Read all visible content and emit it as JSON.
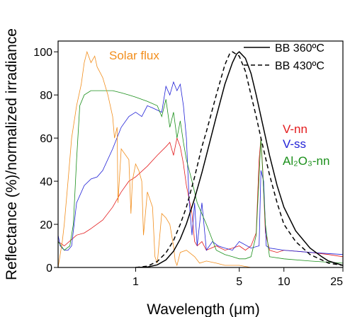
{
  "chart_data": {
    "type": "line",
    "xlabel": "Wavelength (μm)",
    "ylabel": "Reflectance (%)/normalized irradiance",
    "x_scale": "log",
    "xlim": [
      0.3,
      25
    ],
    "ylim": [
      0,
      105
    ],
    "x_ticks": [
      1,
      5,
      10,
      25
    ],
    "y_ticks": [
      0,
      20,
      40,
      60,
      80,
      100
    ],
    "grid": false,
    "legend_position": "top-right",
    "legend": [
      {
        "label": "BB 360ºC",
        "dash": "solid",
        "color": "#000000"
      },
      {
        "label": "BB 430ºC",
        "dash": "dashed",
        "color": "#000000"
      }
    ],
    "annotations": [
      {
        "text": "Solar flux",
        "color": "#f28e1c"
      },
      {
        "text": "V-nn",
        "color": "#e31a1c"
      },
      {
        "text": "V-ss",
        "color": "#1f1fd6"
      },
      {
        "text": "Al₂O₃-nn",
        "color": "#1a8f1a"
      }
    ],
    "series": [
      {
        "name": "V-nn",
        "color": "#e31a1c",
        "dash": "solid",
        "x": [
          0.3,
          0.33,
          0.37,
          0.4,
          0.45,
          0.5,
          0.6,
          0.7,
          0.8,
          0.9,
          1.0,
          1.2,
          1.4,
          1.6,
          1.7,
          1.8,
          1.9,
          2.0,
          2.1,
          2.2,
          2.4,
          2.5,
          2.6,
          2.8,
          3.0,
          3.5,
          4.0,
          4.5,
          5.0,
          5.5,
          6.0,
          6.5,
          6.8,
          7.0,
          7.2,
          7.5,
          8.0,
          9.0,
          10,
          15,
          20,
          25
        ],
        "y": [
          12,
          10,
          13,
          15,
          16,
          18,
          22,
          28,
          35,
          40,
          42,
          47,
          52,
          56,
          58,
          52,
          60,
          56,
          48,
          38,
          25,
          12,
          10,
          12,
          8,
          10,
          8,
          9,
          10,
          8,
          10,
          16,
          50,
          60,
          45,
          16,
          8,
          7,
          8,
          7,
          6,
          5
        ]
      },
      {
        "name": "V-ss",
        "color": "#1f1fd6",
        "dash": "solid",
        "x": [
          0.3,
          0.31,
          0.33,
          0.35,
          0.37,
          0.4,
          0.45,
          0.5,
          0.55,
          0.6,
          0.7,
          0.8,
          0.9,
          1.0,
          1.1,
          1.2,
          1.3,
          1.5,
          1.6,
          1.7,
          1.8,
          1.9,
          2.0,
          2.1,
          2.2,
          2.3,
          2.4,
          2.5,
          2.6,
          2.8,
          3.0,
          3.3,
          3.6,
          4.0,
          4.5,
          5.0,
          6.0,
          6.8,
          7.0,
          7.3,
          7.6,
          8.0,
          10,
          15,
          25
        ],
        "y": [
          15,
          10,
          8,
          8,
          10,
          30,
          38,
          41,
          42,
          45,
          55,
          65,
          70,
          72,
          70,
          75,
          74,
          72,
          84,
          80,
          86,
          82,
          85,
          75,
          60,
          30,
          15,
          30,
          10,
          30,
          8,
          12,
          10,
          9,
          8,
          12,
          9,
          10,
          45,
          40,
          10,
          9,
          8,
          7,
          6
        ]
      },
      {
        "name": "Al₂O₃-nn",
        "color": "#1a8f1a",
        "dash": "solid",
        "x": [
          0.3,
          0.33,
          0.36,
          0.38,
          0.4,
          0.42,
          0.45,
          0.5,
          0.6,
          0.7,
          0.8,
          0.9,
          1.0,
          1.2,
          1.4,
          1.5,
          1.6,
          1.7,
          1.8,
          1.9,
          2.0,
          2.1,
          2.2,
          2.4,
          2.6,
          3.0,
          3.5,
          4.0,
          4.5,
          5.0,
          5.5,
          6.0,
          6.5,
          7.0,
          7.5,
          8.0,
          10,
          15,
          25
        ],
        "y": [
          12,
          8,
          10,
          20,
          50,
          75,
          80,
          82,
          82,
          82,
          81,
          80,
          79,
          77,
          75,
          70,
          78,
          65,
          72,
          60,
          68,
          58,
          50,
          40,
          30,
          20,
          8,
          6,
          5,
          4,
          4,
          5,
          15,
          60,
          20,
          5,
          4,
          3,
          2
        ]
      },
      {
        "name": "Solar flux",
        "color": "#f28e1c",
        "dash": "solid",
        "x": [
          0.3,
          0.32,
          0.33,
          0.35,
          0.37,
          0.4,
          0.43,
          0.45,
          0.47,
          0.5,
          0.53,
          0.55,
          0.58,
          0.6,
          0.65,
          0.7,
          0.72,
          0.75,
          0.76,
          0.8,
          0.9,
          0.93,
          0.95,
          1.0,
          1.05,
          1.1,
          1.13,
          1.2,
          1.3,
          1.35,
          1.4,
          1.5,
          1.6,
          1.7,
          1.8,
          1.85,
          1.9,
          2.0,
          2.2,
          2.5,
          2.7,
          3.0,
          3.5,
          4.0,
          5.0,
          6.0
        ],
        "y": [
          0,
          12,
          20,
          40,
          60,
          75,
          85,
          95,
          100,
          95,
          98,
          93,
          90,
          88,
          80,
          70,
          60,
          65,
          30,
          55,
          50,
          25,
          40,
          48,
          45,
          40,
          15,
          35,
          28,
          5,
          2,
          25,
          23,
          20,
          10,
          3,
          1,
          7,
          8,
          5,
          2,
          3,
          2,
          1,
          1,
          0
        ]
      },
      {
        "name": "BB 360ºC",
        "color": "#000000",
        "dash": "solid",
        "x": [
          1.0,
          1.2,
          1.4,
          1.6,
          1.8,
          2.0,
          2.2,
          2.5,
          2.8,
          3.0,
          3.5,
          4.0,
          4.5,
          4.8,
          5.0,
          5.5,
          6.0,
          6.5,
          7.0,
          8.0,
          9.0,
          10,
          12,
          15,
          18,
          20,
          25
        ],
        "y": [
          0,
          0.2,
          1.2,
          3.5,
          7.5,
          13.2,
          20.2,
          32,
          44,
          52,
          70,
          85,
          95,
          99,
          100,
          97,
          90,
          80,
          70,
          52,
          38,
          28,
          17,
          9,
          5,
          3,
          1
        ]
      },
      {
        "name": "BB 430ºC",
        "color": "#000000",
        "dash": "dashed",
        "x": [
          1.0,
          1.2,
          1.4,
          1.6,
          1.8,
          2.0,
          2.2,
          2.5,
          2.8,
          3.0,
          3.5,
          4.0,
          4.3,
          4.5,
          5.0,
          5.5,
          6.0,
          6.5,
          7.0,
          8.0,
          9.0,
          10,
          12,
          15,
          18,
          20,
          25
        ],
        "y": [
          0,
          0.6,
          2.8,
          6.8,
          12.5,
          20,
          28,
          42,
          56,
          63,
          80,
          94,
          99,
          100,
          98,
          91,
          80,
          70,
          60,
          43,
          30,
          20,
          12,
          6,
          3.5,
          2,
          1
        ]
      }
    ]
  }
}
